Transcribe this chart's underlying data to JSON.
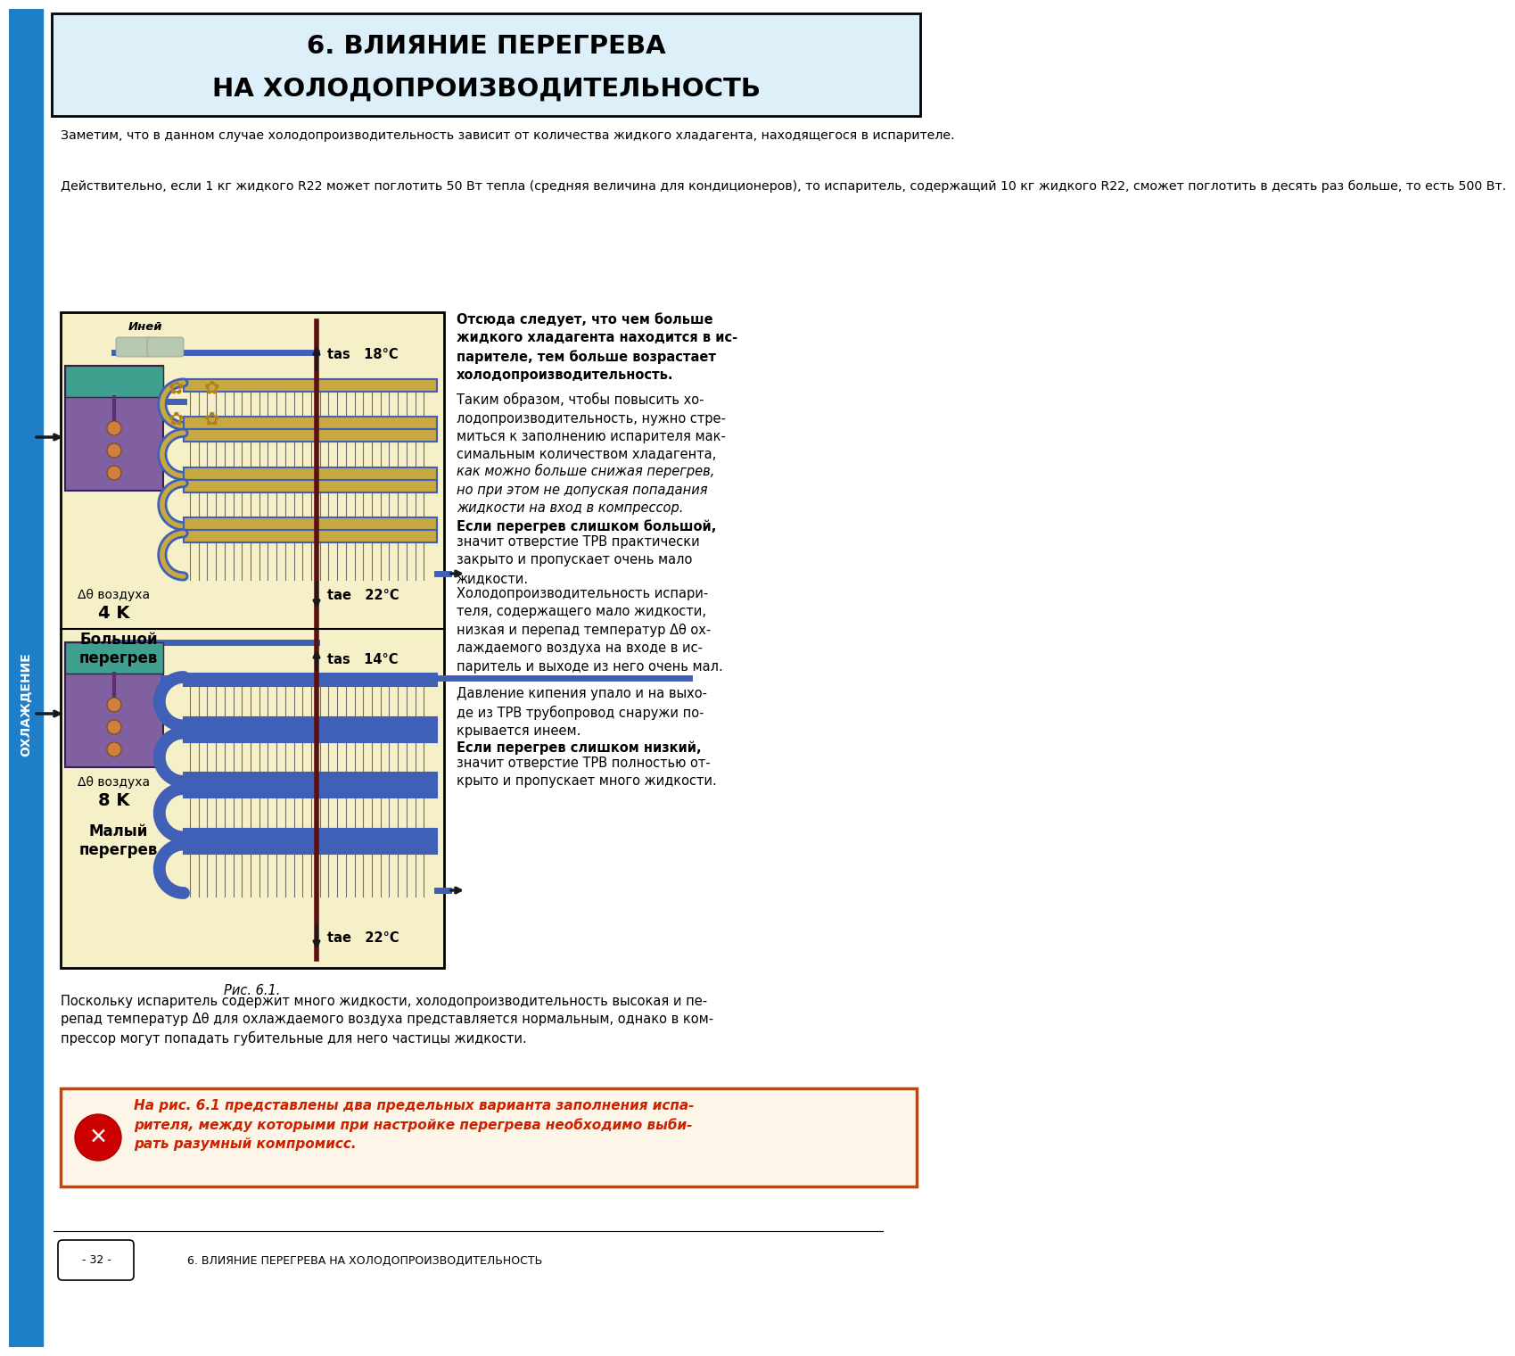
{
  "title_line1": "6. ВЛИЯНИЕ ПЕРЕГРЕВА",
  "title_line2": "НА ХОЛОДОПРОИЗВОДИТЕЛЬНОСТЬ",
  "side_label": "ОХЛАЖДЕНИЕ",
  "bg_color": "#ffffff",
  "header_bg": "#ddf0fa",
  "header_border": "#000000",
  "blue_sidebar": "#1e7ec8",
  "para1": "Заметим, что в данном случае холодопроизводительность зависит от количества жидкого хладагента, находящегося в испарителе.",
  "para2": "Действительно, если 1 кг жидкого R22 может поглотить 50 Вт тепла (средняя величина для кондиционеров), то испаритель, содержащий 10 кг жидкого R22, сможет поглотить в десять раз больше, то есть 500 Вт.",
  "right_col_text1_bold": "Отсюда следует, что чем больше\nжидкого хладагента находится в ис-\nпарителе, тем больше возрастает\nхолодопроизводительность.",
  "right_col_text2": "Таким образом, чтобы повысить хо-\nлодопроизводительность, нужно стре-\nмиться к заполнению испарителя мак-\nсимальным количеством хладагента,",
  "right_col_text2_italic": "как можно больше снижая перегрев,\nно при этом не допуская попадания\nжидкости на вход в компрессор.",
  "right_col_text3_bold_start": "Если перегрев слишком большой,",
  "right_col_text3": "значит отверстие ТРВ практически\nзакрыто и пропускает очень мало\nжидкости.",
  "right_col_text4": "Холодопроизводительность испари-\nтеля, содержащего мало жидкости,\nнизкая и перепад температур Δθ ох-\nлаждаемого воздуха на входе в ис-\nпаритель и выходе из него очень мал.",
  "right_col_text5": "Давление кипения упало и на выхо-\nде из ТРВ трубопровод снаружи по-\nкрывается инеем.",
  "right_col_text6_bold_start": "Если перегрев слишком низкий,",
  "right_col_text6": "значит отверстие ТРВ полностью от-\nкрыто и пропускает много жидкости.",
  "fig_caption": "Рис. 6.1.",
  "bottom_para": "Поскольку испаритель содержит много жидкости, холодопроизводительность высокая и пе-\nрепад температур Δθ для охлаждаемого воздуха представляется нормальным, однако в ком-\nпрессор могут попадать губительные для него частицы жидкости.",
  "bottom_highlight_italic": "На рис. 6.1 представлены два предельных варианта заполнения испа-\nрителя, между которыми при настройке перегрева необходимо выби-\nрать разумный компромисс.",
  "footer_text": "6. ВЛИЯНИЕ ПЕРЕГРЕВА НА ХОЛОДОПРОИЗВОДИТЕЛЬНОСТЬ",
  "page_num": "- 32 -",
  "diagram_frost_label": "Иней",
  "diagram_tas_top": "tas   18°C",
  "diagram_tae_top": "tae   22°C",
  "diagram_delta_top_line1": "Δθ воздуха",
  "diagram_delta_top_line2": "4 K",
  "diagram_label_top": "Большой\nперегрев",
  "diagram_tas_bot": "tas   14°C",
  "diagram_tae_bot": "tae   22°C",
  "diagram_delta_bot_line1": "Δθ воздуха",
  "diagram_delta_bot_line2": "8 K",
  "diagram_label_bot": "Малый\nперегрев",
  "evap_bg": "#f5f0c8",
  "evap_coil_color": "#4060b8",
  "evap_coil_fill_top": "#c8a840",
  "evap_coil_fill_bot": "#4060b8",
  "evap_fin_color": "#3a3a3a",
  "trv_body_color": "#8060a0",
  "trv_top_color": "#40a090",
  "liquid_line_color": "#4060b8",
  "vapor_line_color": "#4060b8",
  "arrow_color": "#1a1a1a",
  "temp_line_color": "#5a1010",
  "frost_patch_color": "#b8c8b0",
  "gear_color": "#b08020"
}
